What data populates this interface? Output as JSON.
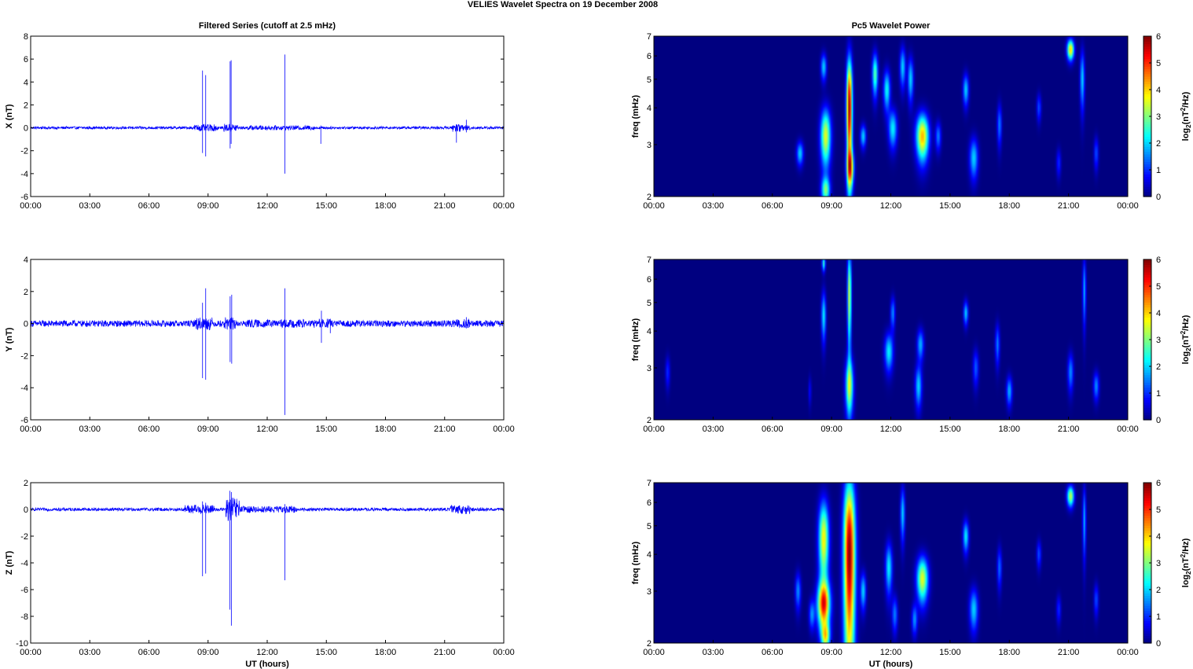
{
  "figure": {
    "title": "VELIES Wavelet Spectra on 19 December  2008"
  },
  "chart_data": [
    {
      "id": "x-series",
      "type": "line",
      "title": "Filtered Series (cutoff at 2.5 mHz)",
      "xlabel": "",
      "ylabel": "X (nT)",
      "xlim": [
        0,
        24
      ],
      "ylim": [
        -6,
        8
      ],
      "x_ticks": [
        "00:00",
        "03:00",
        "06:00",
        "09:00",
        "12:00",
        "15:00",
        "18:00",
        "21:00",
        "00:00"
      ],
      "y_ticks": [
        "-6",
        "-4",
        "-2",
        "0",
        "2",
        "4",
        "6",
        "8"
      ],
      "y_tick_values": [
        -6,
        -4,
        -2,
        0,
        2,
        4,
        6,
        8
      ],
      "series_color": "#0000ff",
      "background_noise": 0.12,
      "bursts": [
        [
          8.3,
          9.5,
          0.3
        ],
        [
          9.8,
          10.5,
          0.35
        ],
        [
          11.0,
          13.5,
          0.2
        ],
        [
          13.3,
          14.5,
          0.2
        ],
        [
          21.4,
          21.9,
          0.35
        ],
        [
          21.9,
          22.3,
          0.25
        ]
      ],
      "spikes": [
        [
          8.72,
          5.0,
          -2.2
        ],
        [
          8.88,
          4.6,
          -2.5
        ],
        [
          10.12,
          5.8,
          -1.8
        ],
        [
          10.17,
          5.9,
          -1.4
        ],
        [
          12.9,
          6.4,
          -4.0
        ],
        [
          14.72,
          0.2,
          -1.4
        ],
        [
          21.6,
          0.3,
          -1.3
        ],
        [
          22.1,
          0.7,
          -0.4
        ]
      ]
    },
    {
      "id": "y-series",
      "type": "line",
      "title": "",
      "xlabel": "",
      "ylabel": "Y (nT)",
      "xlim": [
        0,
        24
      ],
      "ylim": [
        -6,
        4
      ],
      "x_ticks": [
        "00:00",
        "03:00",
        "06:00",
        "09:00",
        "12:00",
        "15:00",
        "18:00",
        "21:00",
        "00:00"
      ],
      "y_ticks": [
        "-6",
        "-4",
        "-2",
        "0",
        "2",
        "4"
      ],
      "y_tick_values": [
        -6,
        -4,
        -2,
        0,
        2,
        4
      ],
      "series_color": "#0000ff",
      "background_noise": 0.2,
      "bursts": [
        [
          8.3,
          9.2,
          0.4
        ],
        [
          9.8,
          10.4,
          0.4
        ],
        [
          11.0,
          14.0,
          0.25
        ],
        [
          14.3,
          15.2,
          0.3
        ],
        [
          21.4,
          22.4,
          0.3
        ]
      ],
      "spikes": [
        [
          8.72,
          1.3,
          -3.4
        ],
        [
          8.88,
          2.2,
          -3.5
        ],
        [
          10.12,
          1.7,
          -2.4
        ],
        [
          10.2,
          1.8,
          -2.5
        ],
        [
          12.9,
          2.2,
          -5.7
        ],
        [
          14.75,
          0.8,
          -1.2
        ],
        [
          15.2,
          0.3,
          -0.6
        ],
        [
          22.1,
          0.4,
          -0.3
        ]
      ]
    },
    {
      "id": "z-series",
      "type": "line",
      "title": "",
      "xlabel": "UT (hours)",
      "ylabel": "Z (nT)",
      "xlim": [
        0,
        24
      ],
      "ylim": [
        -10,
        2
      ],
      "x_ticks": [
        "00:00",
        "03:00",
        "06:00",
        "09:00",
        "12:00",
        "15:00",
        "18:00",
        "21:00",
        "00:00"
      ],
      "y_ticks": [
        "-10",
        "-8",
        "-6",
        "-4",
        "-2",
        "0",
        "2"
      ],
      "y_tick_values": [
        -10,
        -8,
        -6,
        -4,
        -2,
        0,
        2
      ],
      "series_color": "#0000ff",
      "background_noise": 0.12,
      "bursts": [
        [
          7.8,
          9.3,
          0.35
        ],
        [
          9.9,
          10.6,
          0.9
        ],
        [
          10.6,
          13.5,
          0.25
        ],
        [
          21.3,
          22.3,
          0.35
        ]
      ],
      "spikes": [
        [
          8.72,
          0.6,
          -5.0
        ],
        [
          8.88,
          0.5,
          -4.8
        ],
        [
          10.1,
          1.4,
          -7.5
        ],
        [
          10.18,
          1.3,
          -8.7
        ],
        [
          12.9,
          0.4,
          -5.3
        ]
      ]
    },
    {
      "id": "x-wavelet",
      "type": "heatmap",
      "title": "Pc5 Wavelet Power",
      "xlabel": "",
      "ylabel": "freq (mHz)",
      "xlim": [
        0,
        24
      ],
      "ylim": [
        2,
        7
      ],
      "y_scale": "log",
      "x_ticks": [
        "00:00",
        "03:00",
        "06:00",
        "09:00",
        "12:00",
        "15:00",
        "18:00",
        "21:00",
        "00:00"
      ],
      "y_ticks": [
        "2",
        "3",
        "4",
        "5",
        "6",
        "7"
      ],
      "y_tick_values": [
        2,
        3,
        4,
        5,
        6,
        7
      ],
      "colorbar": {
        "label": "log2(nT2/Hz)",
        "range": [
          0,
          6
        ],
        "ticks": [
          "0",
          "1",
          "2",
          "3",
          "4",
          "5",
          "6"
        ],
        "colormap": "jet"
      },
      "blobs": [
        {
          "t": 7.4,
          "f": 2.8,
          "wt": 0.12,
          "wf": 0.18,
          "v": 2.0
        },
        {
          "t": 8.7,
          "f": 3.2,
          "wt": 0.18,
          "wf": 0.5,
          "v": 3.6
        },
        {
          "t": 8.7,
          "f": 2.1,
          "wt": 0.15,
          "wf": 0.15,
          "v": 2.8
        },
        {
          "t": 8.6,
          "f": 5.5,
          "wt": 0.1,
          "wf": 0.4,
          "v": 2.0
        },
        {
          "t": 9.9,
          "f": 4.0,
          "wt": 0.1,
          "wf": 1.2,
          "v": 5.9
        },
        {
          "t": 9.95,
          "f": 2.5,
          "wt": 0.12,
          "wf": 0.25,
          "v": 3.5
        },
        {
          "t": 10.6,
          "f": 3.2,
          "wt": 0.1,
          "wf": 0.2,
          "v": 2.0
        },
        {
          "t": 11.2,
          "f": 5.2,
          "wt": 0.1,
          "wf": 0.6,
          "v": 2.8
        },
        {
          "t": 11.8,
          "f": 4.6,
          "wt": 0.12,
          "wf": 0.5,
          "v": 2.3
        },
        {
          "t": 12.1,
          "f": 3.4,
          "wt": 0.15,
          "wf": 0.35,
          "v": 2.2
        },
        {
          "t": 12.6,
          "f": 5.5,
          "wt": 0.1,
          "wf": 0.6,
          "v": 2.0
        },
        {
          "t": 13.6,
          "f": 3.2,
          "wt": 0.22,
          "wf": 0.4,
          "v": 4.2
        },
        {
          "t": 13.0,
          "f": 5.0,
          "wt": 0.1,
          "wf": 0.6,
          "v": 2.0
        },
        {
          "t": 14.4,
          "f": 3.2,
          "wt": 0.1,
          "wf": 0.25,
          "v": 1.5
        },
        {
          "t": 15.8,
          "f": 4.6,
          "wt": 0.1,
          "wf": 0.4,
          "v": 2.0
        },
        {
          "t": 16.2,
          "f": 2.7,
          "wt": 0.15,
          "wf": 0.3,
          "v": 2.0
        },
        {
          "t": 17.5,
          "f": 3.5,
          "wt": 0.08,
          "wf": 0.4,
          "v": 1.5
        },
        {
          "t": 19.5,
          "f": 4.0,
          "wt": 0.08,
          "wf": 0.3,
          "v": 1.2
        },
        {
          "t": 20.5,
          "f": 2.6,
          "wt": 0.08,
          "wf": 0.2,
          "v": 1.0
        },
        {
          "t": 21.1,
          "f": 6.3,
          "wt": 0.12,
          "wf": 0.35,
          "v": 4.0
        },
        {
          "t": 21.7,
          "f": 5.0,
          "wt": 0.08,
          "wf": 0.8,
          "v": 2.0
        },
        {
          "t": 22.4,
          "f": 2.8,
          "wt": 0.08,
          "wf": 0.25,
          "v": 1.2
        }
      ]
    },
    {
      "id": "y-wavelet",
      "type": "heatmap",
      "title": "",
      "xlabel": "",
      "ylabel": "freq (mHz)",
      "xlim": [
        0,
        24
      ],
      "ylim": [
        2,
        7
      ],
      "y_scale": "log",
      "x_ticks": [
        "00:00",
        "03:00",
        "06:00",
        "09:00",
        "12:00",
        "15:00",
        "18:00",
        "21:00",
        "00:00"
      ],
      "y_ticks": [
        "2",
        "3",
        "4",
        "5",
        "6",
        "7"
      ],
      "y_tick_values": [
        2,
        3,
        4,
        5,
        6,
        7
      ],
      "colorbar": {
        "label": "log2(nT2/Hz)",
        "range": [
          0,
          6
        ],
        "ticks": [
          "0",
          "1",
          "2",
          "3",
          "4",
          "5",
          "6"
        ],
        "colormap": "jet"
      },
      "blobs": [
        {
          "t": 0.7,
          "f": 2.9,
          "wt": 0.08,
          "wf": 0.25,
          "v": 1.0
        },
        {
          "t": 7.9,
          "f": 2.5,
          "wt": 0.05,
          "wf": 0.2,
          "v": 0.8
        },
        {
          "t": 8.6,
          "f": 4.5,
          "wt": 0.08,
          "wf": 0.6,
          "v": 2.2
        },
        {
          "t": 8.6,
          "f": 6.8,
          "wt": 0.06,
          "wf": 0.3,
          "v": 2.5
        },
        {
          "t": 9.9,
          "f": 2.6,
          "wt": 0.14,
          "wf": 0.4,
          "v": 3.2
        },
        {
          "t": 9.9,
          "f": 5.3,
          "wt": 0.07,
          "wf": 1.4,
          "v": 3.5
        },
        {
          "t": 11.9,
          "f": 3.4,
          "wt": 0.15,
          "wf": 0.35,
          "v": 2.2
        },
        {
          "t": 12.1,
          "f": 4.6,
          "wt": 0.08,
          "wf": 0.4,
          "v": 1.6
        },
        {
          "t": 13.4,
          "f": 2.6,
          "wt": 0.12,
          "wf": 0.3,
          "v": 2.0
        },
        {
          "t": 13.5,
          "f": 3.6,
          "wt": 0.12,
          "wf": 0.3,
          "v": 1.8
        },
        {
          "t": 15.8,
          "f": 4.6,
          "wt": 0.08,
          "wf": 0.3,
          "v": 2.0
        },
        {
          "t": 16.3,
          "f": 3.0,
          "wt": 0.1,
          "wf": 0.3,
          "v": 1.3
        },
        {
          "t": 17.4,
          "f": 3.6,
          "wt": 0.08,
          "wf": 0.4,
          "v": 1.5
        },
        {
          "t": 18.0,
          "f": 2.5,
          "wt": 0.1,
          "wf": 0.2,
          "v": 1.8
        },
        {
          "t": 21.1,
          "f": 2.9,
          "wt": 0.1,
          "wf": 0.3,
          "v": 1.6
        },
        {
          "t": 21.8,
          "f": 5.5,
          "wt": 0.06,
          "wf": 1.0,
          "v": 1.8
        },
        {
          "t": 22.4,
          "f": 2.6,
          "wt": 0.1,
          "wf": 0.2,
          "v": 1.6
        }
      ]
    },
    {
      "id": "z-wavelet",
      "type": "heatmap",
      "title": "",
      "xlabel": "UT (hours)",
      "ylabel": "freq (mHz)",
      "xlim": [
        0,
        24
      ],
      "ylim": [
        2,
        7
      ],
      "y_scale": "log",
      "x_ticks": [
        "00:00",
        "03:00",
        "06:00",
        "09:00",
        "12:00",
        "15:00",
        "18:00",
        "21:00",
        "00:00"
      ],
      "y_ticks": [
        "2",
        "3",
        "4",
        "5",
        "6",
        "7"
      ],
      "y_tick_values": [
        2,
        3,
        4,
        5,
        6,
        7
      ],
      "colorbar": {
        "label": "log2(nT2/Hz)",
        "range": [
          0,
          6
        ],
        "ticks": [
          "0",
          "1",
          "2",
          "3",
          "4",
          "5",
          "6"
        ],
        "colormap": "jet"
      },
      "blobs": [
        {
          "t": 7.3,
          "f": 3.0,
          "wt": 0.1,
          "wf": 0.3,
          "v": 1.6
        },
        {
          "t": 8.0,
          "f": 2.5,
          "wt": 0.1,
          "wf": 0.2,
          "v": 1.6
        },
        {
          "t": 8.6,
          "f": 2.7,
          "wt": 0.22,
          "wf": 0.35,
          "v": 4.8
        },
        {
          "t": 8.6,
          "f": 4.5,
          "wt": 0.18,
          "wf": 1.0,
          "v": 3.8
        },
        {
          "t": 8.7,
          "f": 2.1,
          "wt": 0.15,
          "wf": 0.15,
          "v": 3.0
        },
        {
          "t": 9.9,
          "f": 4.0,
          "wt": 0.2,
          "wf": 2.0,
          "v": 6.0
        },
        {
          "t": 10.6,
          "f": 3.0,
          "wt": 0.1,
          "wf": 0.3,
          "v": 2.0
        },
        {
          "t": 11.9,
          "f": 3.6,
          "wt": 0.12,
          "wf": 0.5,
          "v": 2.2
        },
        {
          "t": 12.2,
          "f": 2.5,
          "wt": 0.1,
          "wf": 0.25,
          "v": 1.5
        },
        {
          "t": 12.6,
          "f": 5.5,
          "wt": 0.08,
          "wf": 0.8,
          "v": 2.0
        },
        {
          "t": 13.6,
          "f": 3.3,
          "wt": 0.2,
          "wf": 0.4,
          "v": 3.6
        },
        {
          "t": 13.2,
          "f": 2.4,
          "wt": 0.1,
          "wf": 0.2,
          "v": 1.6
        },
        {
          "t": 15.8,
          "f": 4.6,
          "wt": 0.1,
          "wf": 0.4,
          "v": 2.2
        },
        {
          "t": 16.2,
          "f": 2.6,
          "wt": 0.15,
          "wf": 0.3,
          "v": 2.0
        },
        {
          "t": 17.5,
          "f": 3.6,
          "wt": 0.08,
          "wf": 0.4,
          "v": 1.4
        },
        {
          "t": 19.5,
          "f": 4.0,
          "wt": 0.08,
          "wf": 0.3,
          "v": 1.2
        },
        {
          "t": 20.5,
          "f": 2.6,
          "wt": 0.08,
          "wf": 0.2,
          "v": 1.0
        },
        {
          "t": 21.1,
          "f": 6.3,
          "wt": 0.12,
          "wf": 0.35,
          "v": 3.4
        },
        {
          "t": 21.8,
          "f": 5.2,
          "wt": 0.06,
          "wf": 1.0,
          "v": 1.8
        },
        {
          "t": 22.4,
          "f": 2.8,
          "wt": 0.08,
          "wf": 0.25,
          "v": 1.2
        }
      ]
    }
  ]
}
